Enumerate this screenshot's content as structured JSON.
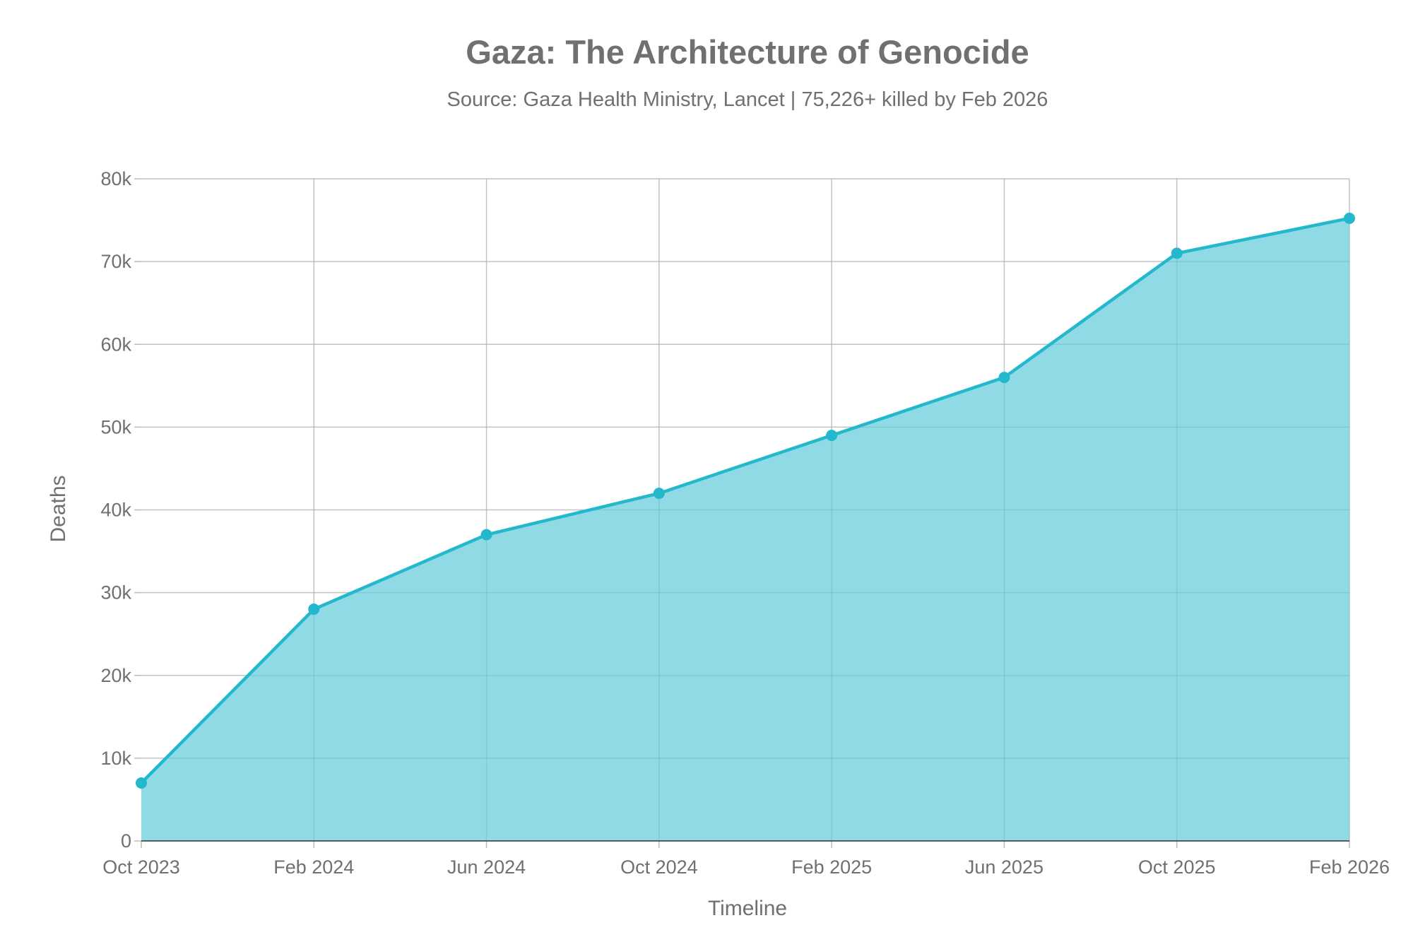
{
  "chart_data": {
    "type": "area",
    "title": "Gaza: The Architecture of Genocide",
    "subtitle": "Source: Gaza Health Ministry, Lancet | 75,226+ killed by Feb 2026",
    "xlabel": "Timeline",
    "ylabel": "Deaths",
    "x": [
      "Oct 2023",
      "Feb 2024",
      "Jun 2024",
      "Oct 2024",
      "Feb 2025",
      "Jun 2025",
      "Oct 2025",
      "Feb 2026"
    ],
    "values": [
      7000,
      28000,
      37000,
      42000,
      49000,
      56000,
      71000,
      75226
    ],
    "ylim": [
      0,
      80000
    ],
    "yticks": [
      0,
      10000,
      20000,
      30000,
      40000,
      50000,
      60000,
      70000,
      80000
    ],
    "ytick_labels": [
      "0",
      "10k",
      "20k",
      "30k",
      "40k",
      "50k",
      "60k",
      "70k",
      "80k"
    ],
    "grid": true,
    "colors": {
      "line": "#24b8cc",
      "fill": "#8fdae4",
      "text": "#707070",
      "grid": "#d4d4d4"
    }
  }
}
